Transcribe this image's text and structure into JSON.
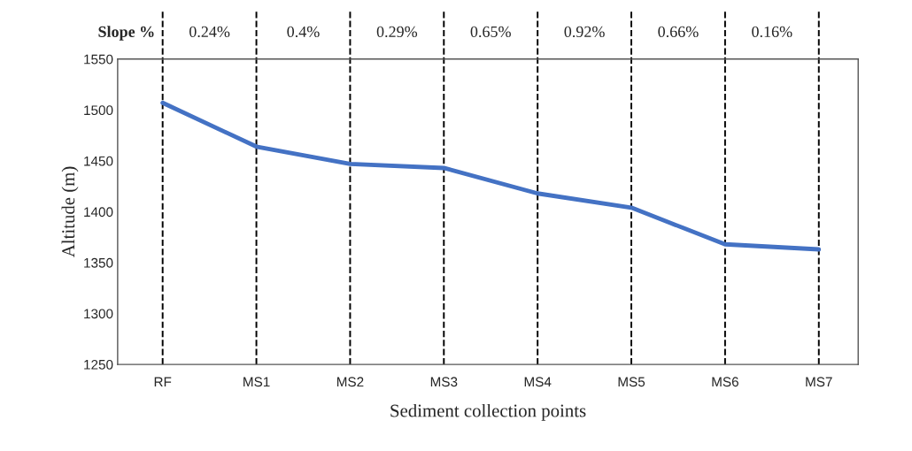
{
  "chart_data": {
    "type": "line",
    "xlabel": "Sediment collection points",
    "ylabel": "Altitude (m)",
    "categories": [
      "RF",
      "MS1",
      "MS2",
      "MS3",
      "MS4",
      "MS5",
      "MS6",
      "MS7"
    ],
    "series": [
      {
        "color": "#4472c4",
        "values": [
          1507,
          1464,
          1447,
          1443,
          1418,
          1404,
          1368,
          1363
        ]
      }
    ],
    "ylim": [
      1250,
      1550
    ],
    "yticks": [
      1250,
      1300,
      1350,
      1400,
      1450,
      1500,
      1550
    ],
    "grid": "x",
    "legend": false,
    "marker": "none",
    "line_style": "solid",
    "annotations": [
      "Slope %",
      "0.24%",
      "0.4%",
      "0.29%",
      "0.65%",
      "0.92%",
      "0.66%",
      "0.16%"
    ]
  }
}
